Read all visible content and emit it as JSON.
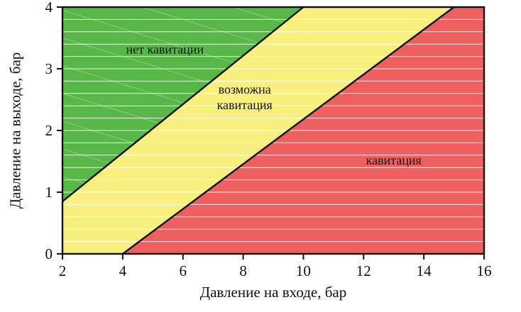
{
  "chart_data": {
    "type": "area",
    "title": "",
    "xlabel": "Давление на входе, бар",
    "ylabel": "Давление на выходе, бар",
    "xlim": [
      2,
      16
    ],
    "ylim": [
      0,
      4
    ],
    "x_ticks": [
      2,
      4,
      6,
      8,
      10,
      12,
      14,
      16
    ],
    "y_ticks": [
      0,
      1,
      2,
      3,
      4
    ],
    "grid": {
      "horizontal_step": 0.2,
      "color": "#ffffff"
    },
    "axis_color": "#111111",
    "regions": [
      {
        "name": "no-cavitation",
        "label": "нет кавитации",
        "label_lines": [
          "нет кавитации"
        ],
        "color": "#57b847",
        "polygon": [
          [
            2,
            0.85
          ],
          [
            10,
            4
          ],
          [
            2,
            4
          ]
        ],
        "label_pos": [
          5.4,
          3.25
        ]
      },
      {
        "name": "possible-cavitation",
        "label": "возможна кавитация",
        "label_lines": [
          "возможна",
          "кавитация"
        ],
        "color": "#f7ef7e",
        "polygon": [
          [
            2,
            0
          ],
          [
            4,
            0
          ],
          [
            15,
            4
          ],
          [
            10,
            4
          ],
          [
            2,
            0.85
          ]
        ],
        "label_pos": [
          8.05,
          2.6
        ]
      },
      {
        "name": "cavitation",
        "label": "кавитация",
        "label_lines": [
          "кавитация"
        ],
        "color": "#ee6060",
        "polygon": [
          [
            4,
            0
          ],
          [
            16,
            0
          ],
          [
            16,
            4
          ],
          [
            15,
            4
          ]
        ],
        "label_pos": [
          13.0,
          1.45
        ]
      }
    ],
    "boundary_lines": [
      {
        "from": [
          2,
          0.85
        ],
        "to": [
          10,
          4
        ]
      },
      {
        "from": [
          4,
          0
        ],
        "to": [
          15,
          4
        ]
      }
    ]
  }
}
